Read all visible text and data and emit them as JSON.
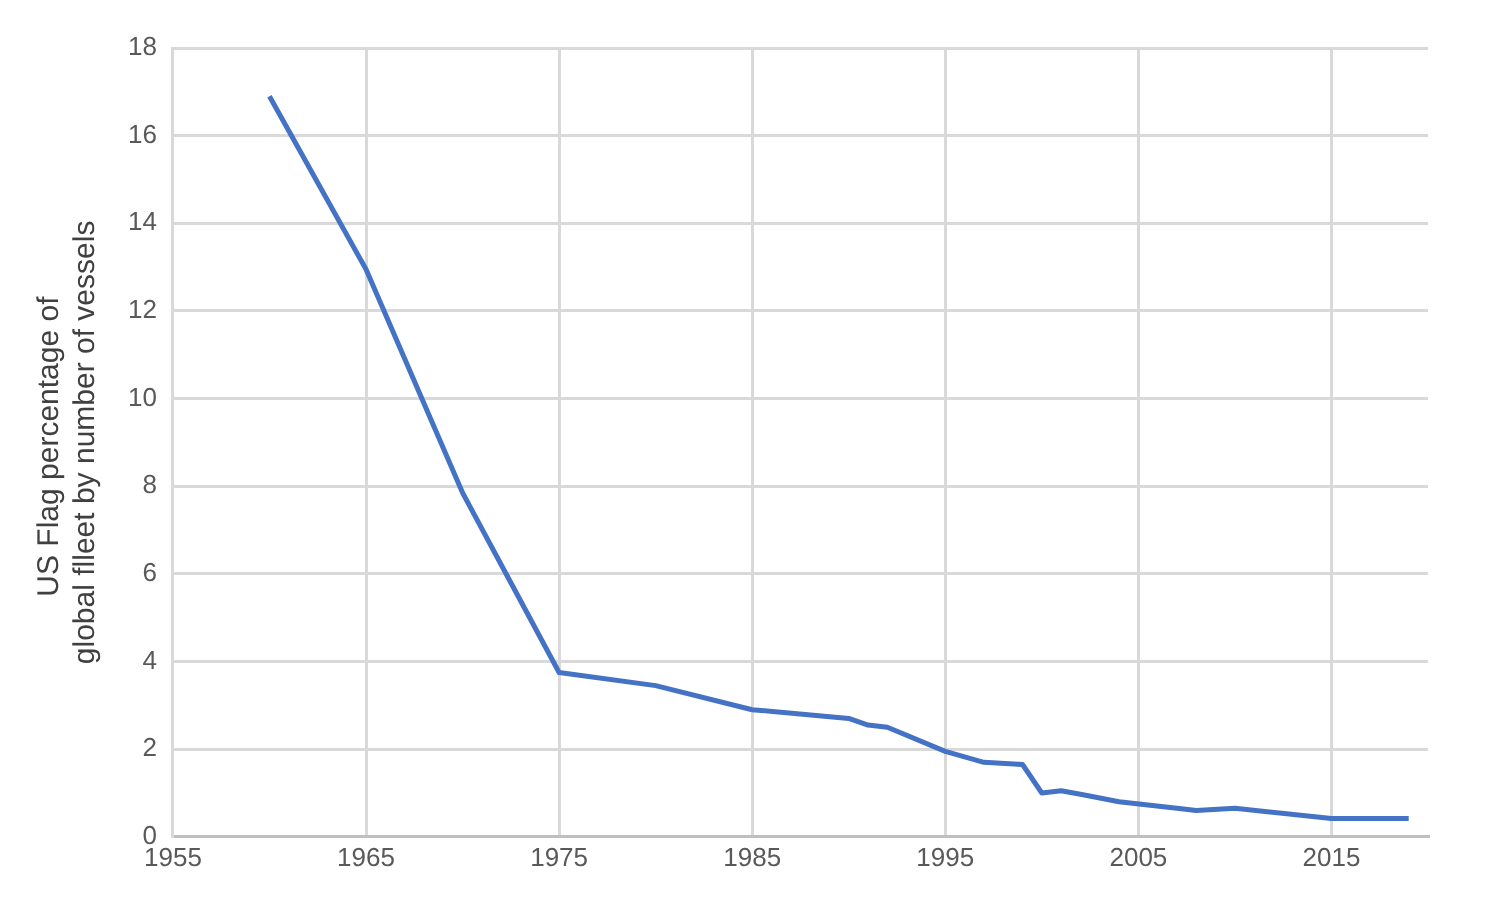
{
  "chart_data": {
    "type": "line",
    "ylabel": "US Flag percentage of  global flleet by number of vessels",
    "x": [
      1960,
      1965,
      1970,
      1975,
      1980,
      1985,
      1990,
      1991,
      1992,
      1995,
      1997,
      1999,
      2000,
      2001,
      2002,
      2004,
      2007,
      2008,
      2010,
      2015,
      2019
    ],
    "series": [
      {
        "color": "#4472c4",
        "values": [
          16.9,
          12.95,
          7.85,
          3.75,
          3.45,
          2.9,
          2.7,
          2.55,
          2.5,
          1.95,
          1.7,
          1.65,
          1.0,
          1.05,
          0.97,
          0.8,
          0.65,
          0.6,
          0.65,
          0.42,
          0.42
        ]
      }
    ],
    "xlim": [
      1955,
      2020
    ],
    "xticks": [
      1955,
      1965,
      1975,
      1985,
      1995,
      2005,
      2015
    ],
    "ylim": [
      0,
      18
    ],
    "yticks": [
      0,
      2,
      4,
      6,
      8,
      10,
      12,
      14,
      16,
      18
    ],
    "grid": true,
    "legend": false,
    "marker": "none",
    "line_style": "solid"
  }
}
